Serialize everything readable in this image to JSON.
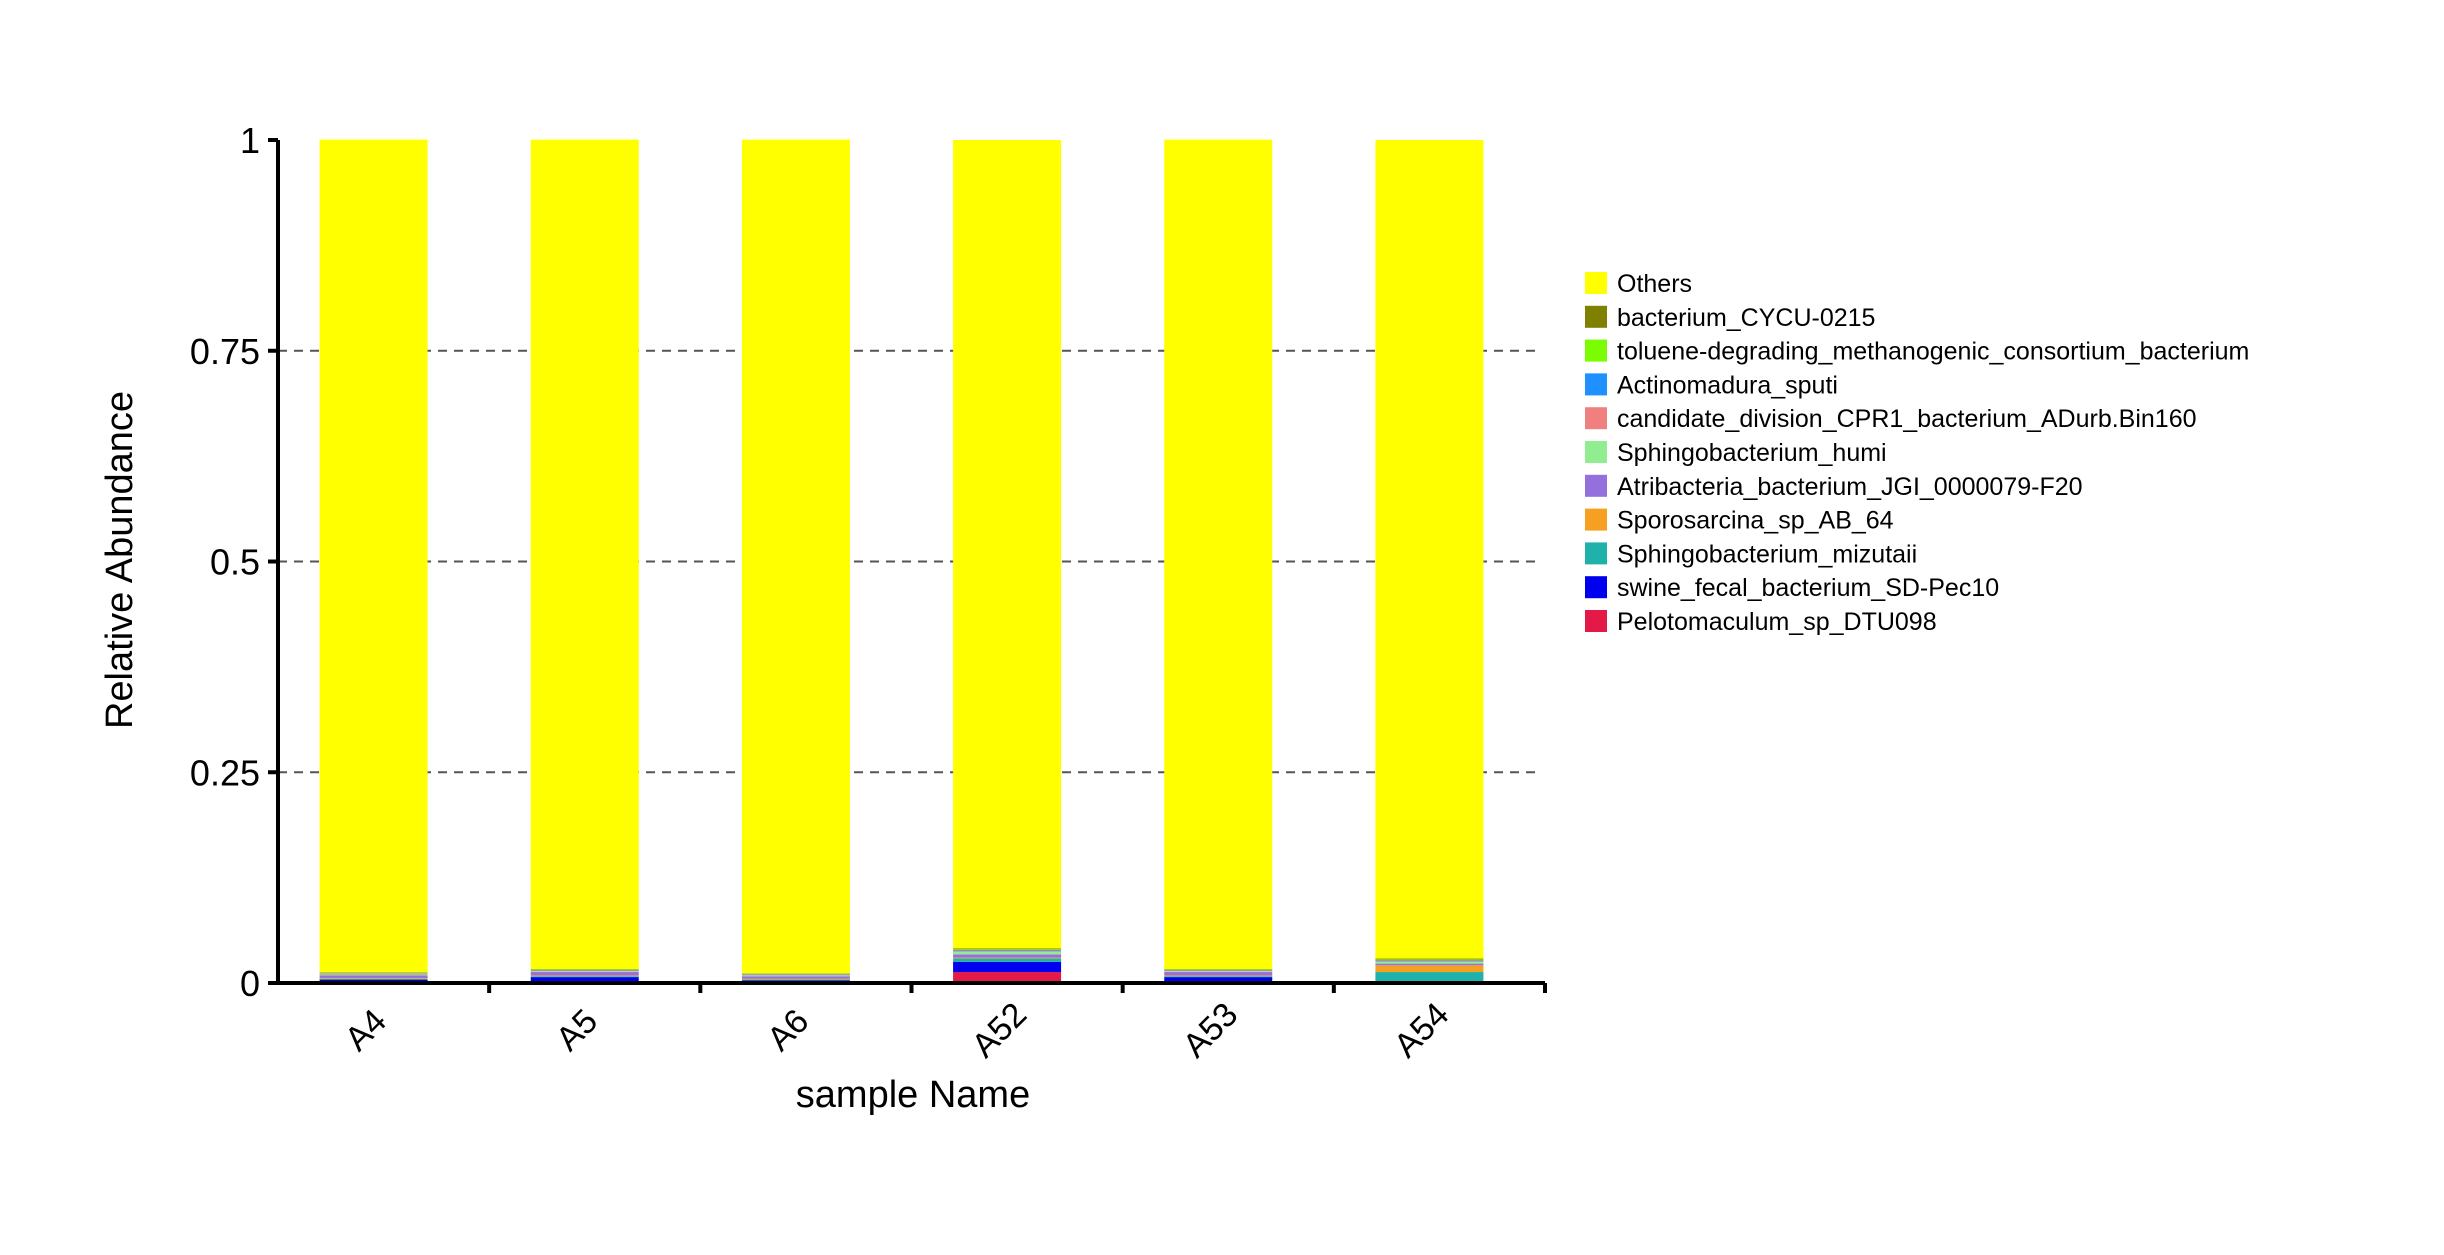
{
  "chart_data": {
    "type": "bar",
    "stacked": true,
    "xlabel": "sample Name",
    "ylabel": "Relative Abundance",
    "ylim": [
      0,
      1
    ],
    "yticks": [
      0,
      0.25,
      0.5,
      0.75,
      1
    ],
    "ytick_labels": [
      "0",
      "0.25",
      "0.5",
      "0.75",
      "1"
    ],
    "grid": "horizontal-dashed",
    "legend_position": "right",
    "categories": [
      "A4",
      "A5",
      "A6",
      "A52",
      "A53",
      "A54"
    ],
    "series": [
      {
        "name": "Pelotomaculum_sp_DTU098",
        "color": "#e31a48",
        "values": [
          0.001,
          0.001,
          0.001,
          0.013,
          0.001,
          0.001
        ]
      },
      {
        "name": "swine_fecal_bacterium_SD-Pec10",
        "color": "#0000ee",
        "values": [
          0.003,
          0.006,
          0.002,
          0.012,
          0.006,
          0.001
        ]
      },
      {
        "name": "Sphingobacterium_mizutaii",
        "color": "#20b2aa",
        "values": [
          0.001,
          0.001,
          0.001,
          0.004,
          0.001,
          0.011
        ]
      },
      {
        "name": "Sporosarcina_sp_AB_64",
        "color": "#f5a020",
        "values": [
          0.001,
          0.001,
          0.001,
          0.001,
          0.001,
          0.008
        ]
      },
      {
        "name": "Atribacteria_bacterium_JGI_0000079-F20",
        "color": "#9370db",
        "values": [
          0.003,
          0.004,
          0.003,
          0.004,
          0.004,
          0.002
        ]
      },
      {
        "name": "Sphingobacterium_humi",
        "color": "#90ee90",
        "values": [
          0.001,
          0.001,
          0.001,
          0.003,
          0.001,
          0.002
        ]
      },
      {
        "name": "candidate_division_CPR1_bacterium_ADurb.Bin160",
        "color": "#f08080",
        "values": [
          0.001,
          0.001,
          0.001,
          0.001,
          0.001,
          0.001
        ]
      },
      {
        "name": "Actinomadura_sputi",
        "color": "#1e90ff",
        "values": [
          0.0005,
          0.0005,
          0.0005,
          0.001,
          0.0005,
          0.001
        ]
      },
      {
        "name": "toluene-degrading_methanogenic_consortium_bacterium",
        "color": "#7cfc00",
        "values": [
          0.0005,
          0.0005,
          0.0005,
          0.001,
          0.0005,
          0.001
        ]
      },
      {
        "name": "bacterium_CYCU-0215",
        "color": "#808000",
        "values": [
          0.0005,
          0.0005,
          0.0005,
          0.001,
          0.0005,
          0.001
        ]
      },
      {
        "name": "Others",
        "color": "#ffff00",
        "values": [
          0.988,
          0.984,
          0.989,
          0.959,
          0.984,
          0.971
        ]
      }
    ]
  }
}
